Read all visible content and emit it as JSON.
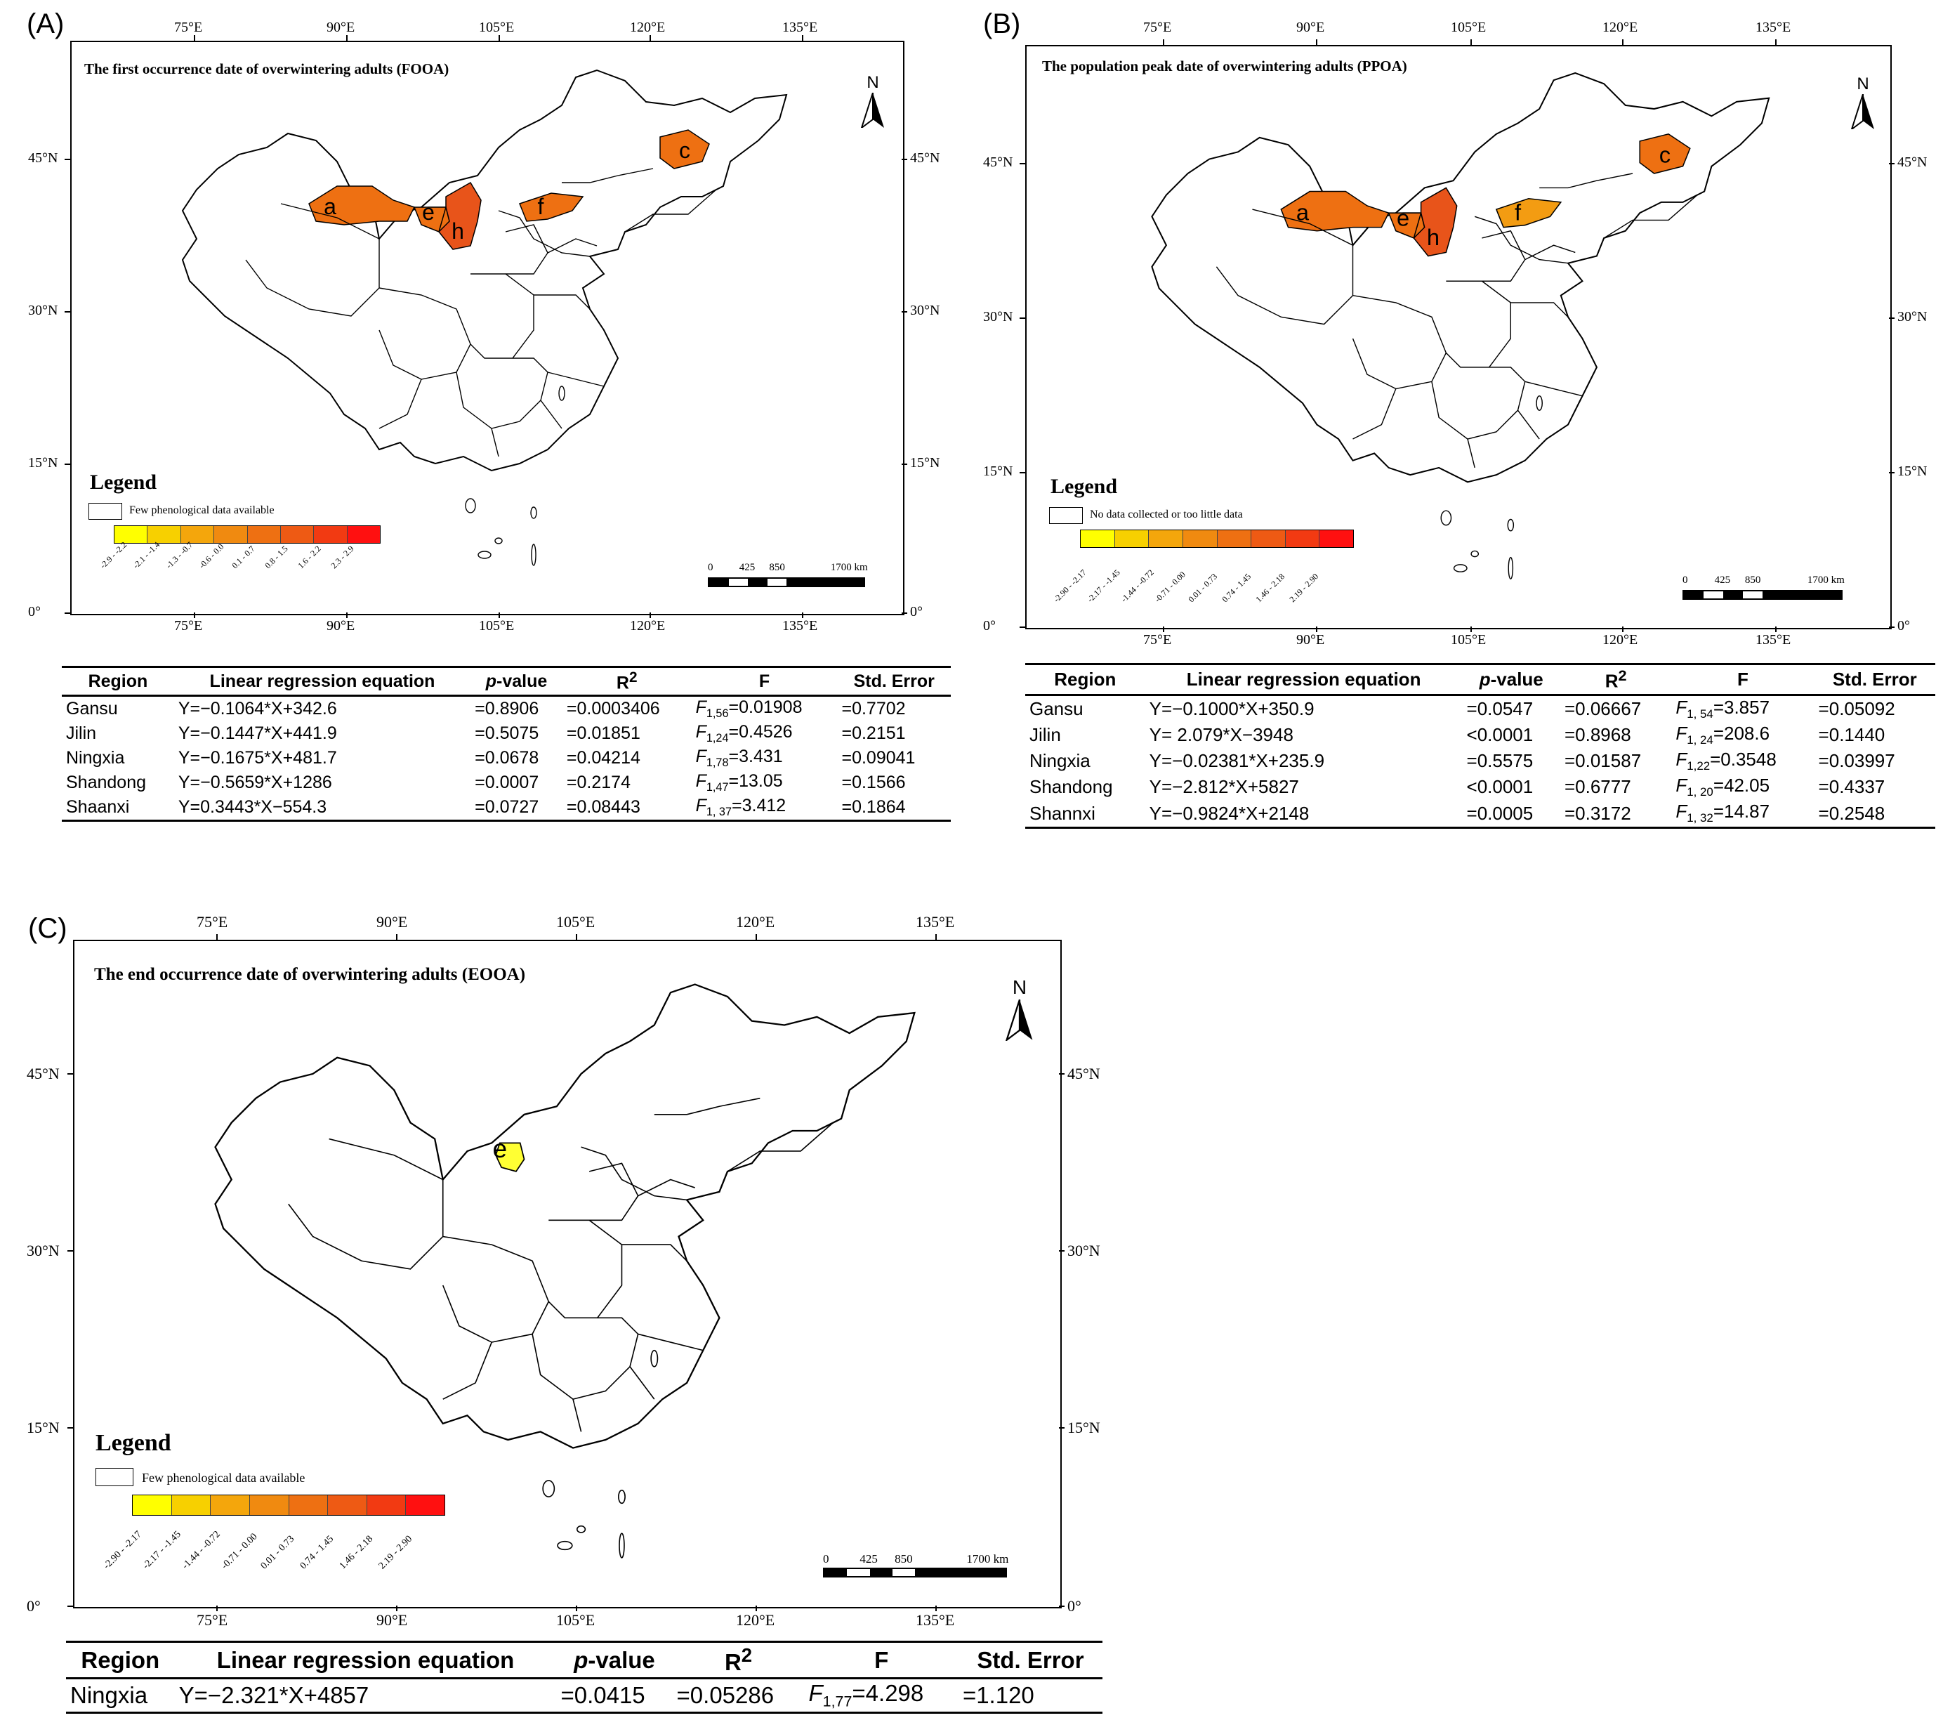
{
  "colors": {
    "ramp": [
      "#ffff00",
      "#f7d000",
      "#f4a60c",
      "#f08a10",
      "#ee7012",
      "#ee5a14",
      "#f23a12",
      "#ff1010"
    ],
    "region_light": "#f39c12",
    "region_mid": "#ee7012",
    "region_dark": "#e8541a",
    "region_yellow": "#ffff33"
  },
  "chart_data": [
    {
      "type": "table",
      "panel": "(A)",
      "title": "The first occurrence date of overwintering adults (FOOA)",
      "lon_ticks": [
        "75°E",
        "90°E",
        "105°E",
        "120°E",
        "135°E"
      ],
      "lat_ticks": [
        "0°",
        "15°N",
        "30°N",
        "45°N"
      ],
      "lat_ticks_right": [
        "0°",
        "15°N",
        "30°N",
        "45°N"
      ],
      "north": "N",
      "legend": {
        "title": "Legend",
        "box_label": "Few phenological data available",
        "ramp_labels": [
          "-2.9 - -2.2",
          "-2.1 - -1.4",
          "-1.3 - -0.7",
          "-0.6 - 0.0",
          "0.1 - 0.7",
          "0.8 - 1.5",
          "1.6 - 2.2",
          "2.3 - 2.9"
        ]
      },
      "scalebar": {
        "labels": [
          "0",
          "425",
          "850",
          "1700 km"
        ]
      },
      "regions": [
        "a",
        "c",
        "e",
        "f",
        "h"
      ],
      "table": {
        "headers": [
          "Region",
          "Linear regression equation",
          "p-value",
          "R²",
          "F",
          "Std. Error"
        ],
        "rows": [
          [
            "Gansu",
            "Y=−0.1064*X+342.6",
            "=0.8906",
            "=0.0003406",
            "F1,56=0.01908",
            "=0.7702"
          ],
          [
            "Jilin",
            "Y=−0.1447*X+441.9",
            "=0.5075",
            "=0.01851",
            "F1,24=0.4526",
            "=0.2151"
          ],
          [
            "Ningxia",
            "Y=−0.1675*X+481.7",
            "=0.0678",
            "=0.04214",
            "F1,78=3.431",
            "=0.09041"
          ],
          [
            "Shandong",
            "Y=−0.5659*X+1286",
            "=0.0007",
            "=0.2174",
            "F1,47=13.05",
            "=0.1566"
          ],
          [
            "Shaanxi",
            "Y=0.3443*X−554.3",
            "=0.0727",
            "=0.08443",
            "F1, 37=3.412",
            "=0.1864"
          ]
        ]
      }
    },
    {
      "type": "table",
      "panel": "(B)",
      "title": "The population peak date of overwintering adults (PPOA)",
      "lon_ticks": [
        "75°E",
        "90°E",
        "105°E",
        "120°E",
        "135°E"
      ],
      "lat_ticks": [
        "0°",
        "15°N",
        "30°N",
        "45°N"
      ],
      "lat_ticks_right": [
        "0°",
        "15°N",
        "30°N",
        "45°N"
      ],
      "north": "N",
      "legend": {
        "title": "Legend",
        "box_label": "No data collected or too little data",
        "ramp_labels": [
          "-2.90 - -2.17",
          "-2.17 - -1.45",
          "-1.44 - -0.72",
          "-0.71 - 0.00",
          "0.01 - 0.73",
          "0.74 - 1.45",
          "1.46 - 2.18",
          "2.19 - 2.90"
        ]
      },
      "scalebar": {
        "labels": [
          "0",
          "425",
          "850",
          "1700 km"
        ]
      },
      "regions": [
        "a",
        "c",
        "e",
        "f",
        "h"
      ],
      "table": {
        "headers": [
          "Region",
          "Linear regression equation",
          "p-value",
          "R²",
          "F",
          "Std. Error"
        ],
        "rows": [
          [
            "Gansu",
            "Y=−0.1000*X+350.9",
            "=0.0547",
            "=0.06667",
            "F1, 54=3.857",
            "=0.05092"
          ],
          [
            "Jilin",
            "Y= 2.079*X−3948",
            "<0.0001",
            "=0.8968",
            "F1, 24=208.6",
            "=0.1440"
          ],
          [
            "Ningxia",
            "Y=−0.02381*X+235.9",
            "=0.5575",
            "=0.01587",
            "F1,22=0.3548",
            "=0.03997"
          ],
          [
            "Shandong",
            "Y=−2.812*X+5827",
            "<0.0001",
            "=0.6777",
            "F1, 20=42.05",
            "=0.4337"
          ],
          [
            "Shannxi",
            "Y=−0.9824*X+2148",
            "=0.0005",
            "=0.3172",
            "F1, 32=14.87",
            "=0.2548"
          ]
        ]
      }
    },
    {
      "type": "table",
      "panel": "(C)",
      "title": "The end occurrence date of overwintering adults (EOOA)",
      "lon_ticks": [
        "75°E",
        "90°E",
        "105°E",
        "120°E",
        "135°E"
      ],
      "lat_ticks": [
        "0°",
        "15°N",
        "30°N",
        "45°N"
      ],
      "lat_ticks_right": [
        "0°",
        "15°N",
        "30°N",
        "45°N"
      ],
      "north": "N",
      "legend": {
        "title": "Legend",
        "box_label": "Few phenological data available",
        "ramp_labels": [
          "-2.90 - -2.17",
          "-2.17 - -1.45",
          "-1.44 - -0.72",
          "-0.71 - 0.00",
          "0.01 - 0.73",
          "0.74 - 1.45",
          "1.46 - 2.18",
          "2.19 - 2.90"
        ]
      },
      "scalebar": {
        "labels": [
          "0",
          "425",
          "850",
          "1700 km"
        ]
      },
      "regions": [
        "e"
      ],
      "table": {
        "headers": [
          "Region",
          "Linear regression equation",
          "p-value",
          "R²",
          "F",
          "Std. Error"
        ],
        "rows": [
          [
            "Ningxia",
            "Y=−2.321*X+4857",
            "=0.0415",
            "=0.05286",
            "F1,77=4.298",
            "=1.120"
          ]
        ]
      }
    }
  ]
}
